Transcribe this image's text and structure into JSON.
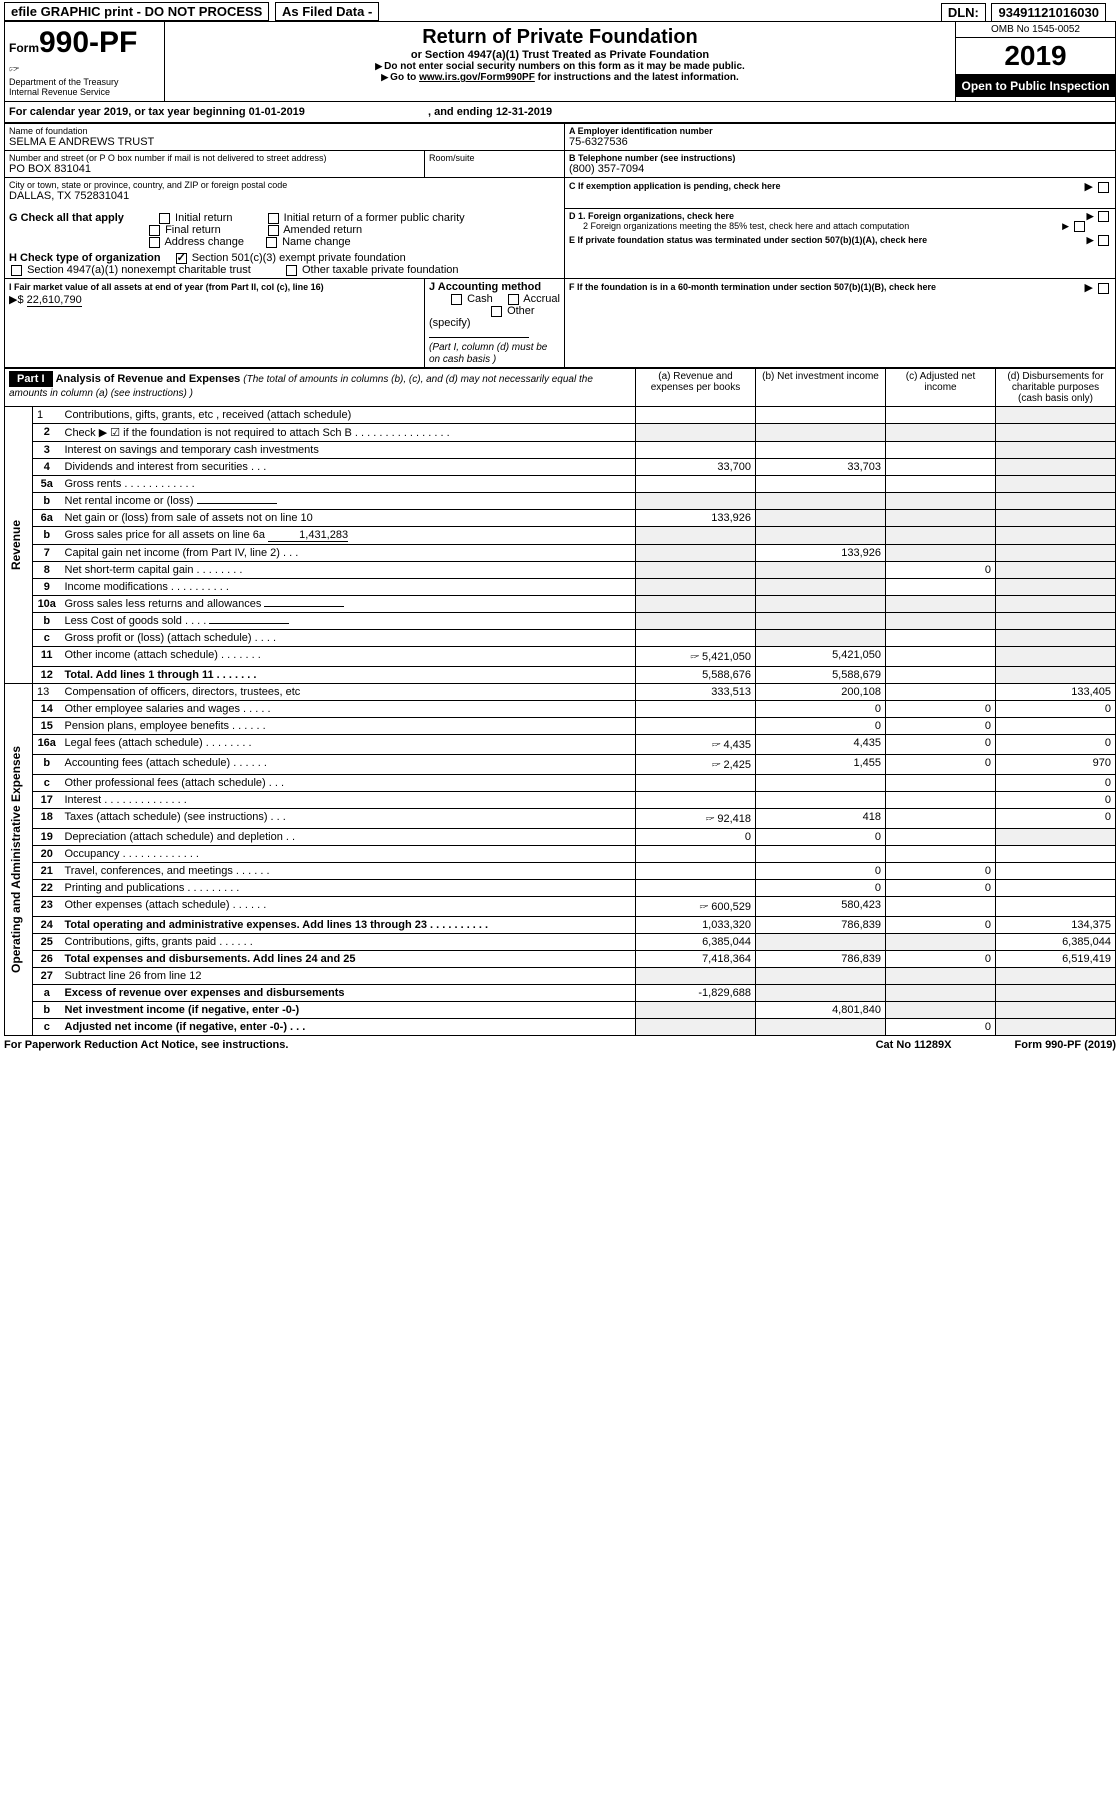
{
  "topbar": {
    "efile": "efile GRAPHIC print - DO NOT PROCESS",
    "asfiled": "As Filed Data -",
    "dln_label": "DLN:",
    "dln": "93491121016030"
  },
  "header": {
    "form_prefix": "Form",
    "form_no": "990-PF",
    "dept": "Department of the Treasury",
    "irs": "Internal Revenue Service",
    "title": "Return of Private Foundation",
    "subtitle": "or Section 4947(a)(1) Trust Treated as Private Foundation",
    "note1": "Do not enter social security numbers on this form as it may be made public.",
    "note2_pre": "Go to ",
    "note2_link": "www.irs.gov/Form990PF",
    "note2_post": " for instructions and the latest information.",
    "omb": "OMB No  1545-0052",
    "year": "2019",
    "inspect": "Open to Public Inspection"
  },
  "cal": {
    "line": "For calendar year 2019, or tax year beginning 01-01-2019",
    "ending": ", and ending 12-31-2019"
  },
  "id": {
    "name_label": "Name of foundation",
    "name": "SELMA E ANDREWS TRUST",
    "addr_label": "Number and street (or P O  box number if mail is not delivered to street address)",
    "room_label": "Room/suite",
    "addr": "PO BOX 831041",
    "city_label": "City or town, state or province, country, and ZIP or foreign postal code",
    "city": "DALLAS, TX  752831041",
    "A_label": "A Employer identification number",
    "A": "75-6327536",
    "B_label": "B Telephone number (see instructions)",
    "B": "(800) 357-7094",
    "C": "C  If exemption application is pending, check here",
    "D1": "D 1. Foreign organizations, check here",
    "D2": "2  Foreign organizations meeting the 85% test, check here and attach computation",
    "E": "E  If private foundation status was terminated under section 507(b)(1)(A), check here",
    "F": "F  If the foundation is in a 60-month termination under section 507(b)(1)(B), check here"
  },
  "G": {
    "label": "G Check all that apply",
    "opts": [
      "Initial return",
      "Initial return of a former public charity",
      "Final return",
      "Amended return",
      "Address change",
      "Name change"
    ]
  },
  "H": {
    "label": "H Check type of organization",
    "opt1": "Section 501(c)(3) exempt private foundation",
    "opt2": "Section 4947(a)(1) nonexempt charitable trust",
    "opt3": "Other taxable private foundation"
  },
  "I": {
    "label": "I Fair market value of all assets at end of year (from Part II, col  (c), line 16)",
    "value_prefix": "▶$",
    "value": "22,610,790"
  },
  "J": {
    "label": "J Accounting method",
    "opts": [
      "Cash",
      "Accrual",
      "Other (specify)"
    ],
    "note": "(Part I, column (d) must be on cash basis )"
  },
  "part1": {
    "label": "Part I",
    "title": "Analysis of Revenue and Expenses",
    "title_note": " (The total of amounts in columns (b), (c), and (d) may not necessarily equal the amounts in column (a) (see instructions) )",
    "cols": {
      "a": "(a)   Revenue and expenses per books",
      "b": "(b)   Net investment income",
      "c": "(c)   Adjusted net income",
      "d": "(d)   Disbursements for charitable purposes (cash basis only)"
    }
  },
  "sidelabels": {
    "rev": "Revenue",
    "exp": "Operating and Administrative Expenses"
  },
  "rows": [
    {
      "n": "1",
      "t": "Contributions, gifts, grants, etc , received (attach schedule)",
      "a": "",
      "b": "",
      "c": "",
      "d": "",
      "dshade": true
    },
    {
      "n": "2",
      "t": "Check  ▶ ☑ if the foundation is not required to attach Sch  B      .   .   .   .   .   .   .   .   .   .   .   .   .   .   .   .",
      "a": "",
      "b": "",
      "c": "",
      "d": "",
      "allshade": true,
      "html": true
    },
    {
      "n": "3",
      "t": "Interest on savings and temporary cash investments",
      "a": "",
      "b": "",
      "c": "",
      "d": "",
      "dshade": true
    },
    {
      "n": "4",
      "t": "Dividends and interest from securities     .   .   .",
      "a": "33,700",
      "b": "33,703",
      "c": "",
      "d": "",
      "dshade": true
    },
    {
      "n": "5a",
      "t": "Gross rents      .   .   .   .   .   .   .   .   .   .   .   .",
      "a": "",
      "b": "",
      "c": "",
      "d": "",
      "dshade": true
    },
    {
      "n": "b",
      "t": "Net rental income or (loss)",
      "a": "",
      "b": "",
      "c": "",
      "d": "",
      "inline": true,
      "allshade": true
    },
    {
      "n": "6a",
      "t": "Net gain or (loss) from sale of assets not on line 10",
      "a": "133,926",
      "b": "",
      "c": "",
      "d": "",
      "bshade": true,
      "cshade": true,
      "dshade": true
    },
    {
      "n": "b",
      "t": "Gross sales price for all assets on line 6a",
      "a": "",
      "b": "",
      "c": "",
      "d": "",
      "inline": true,
      "inlineval": "1,431,283",
      "allshade": true
    },
    {
      "n": "7",
      "t": "Capital gain net income (from Part IV, line 2)    .   .   .",
      "a": "",
      "b": "133,926",
      "c": "",
      "d": "",
      "ashade": true,
      "cshade": true,
      "dshade": true
    },
    {
      "n": "8",
      "t": "Net short-term capital gain   .   .   .   .   .   .   .   .",
      "a": "",
      "b": "",
      "c": "0",
      "d": "",
      "ashade": true,
      "bshade": true,
      "dshade": true
    },
    {
      "n": "9",
      "t": "Income modifications  .   .   .   .   .   .   .   .   .   .",
      "a": "",
      "b": "",
      "c": "",
      "d": "",
      "ashade": true,
      "bshade": true,
      "dshade": true
    },
    {
      "n": "10a",
      "t": "Gross sales less returns and allowances",
      "a": "",
      "b": "",
      "c": "",
      "d": "",
      "inline": true,
      "allshade": true
    },
    {
      "n": "b",
      "t": "Less  Cost of goods sold     .   .   .   .",
      "a": "",
      "b": "",
      "c": "",
      "d": "",
      "inline": true,
      "allshade": true
    },
    {
      "n": "c",
      "t": "Gross profit or (loss) (attach schedule)     .   .   .   .",
      "a": "",
      "b": "",
      "c": "",
      "d": "",
      "bshade": true,
      "dshade": true
    },
    {
      "n": "11",
      "t": "Other income (attach schedule)    .   .   .   .   .   .   .",
      "a": "5,421,050",
      "b": "5,421,050",
      "c": "",
      "d": "",
      "icon": true,
      "dshade": true
    },
    {
      "n": "12",
      "t": "Total. Add lines 1 through 11    .   .   .   .   .   .   .",
      "a": "5,588,676",
      "b": "5,588,679",
      "c": "",
      "d": "",
      "bold": true,
      "dshade": true
    },
    {
      "n": "13",
      "t": "Compensation of officers, directors, trustees, etc",
      "a": "333,513",
      "b": "200,108",
      "c": "",
      "d": "133,405",
      "section": "exp"
    },
    {
      "n": "14",
      "t": "Other employee salaries and wages     .   .   .   .   .",
      "a": "",
      "b": "0",
      "c": "0",
      "d": "0"
    },
    {
      "n": "15",
      "t": "Pension plans, employee benefits    .   .   .   .   .   .",
      "a": "",
      "b": "0",
      "c": "0",
      "d": ""
    },
    {
      "n": "16a",
      "t": "Legal fees (attach schedule) .   .   .   .   .   .   .   .",
      "a": "4,435",
      "b": "4,435",
      "c": "0",
      "d": "0",
      "icon": true
    },
    {
      "n": "b",
      "t": "Accounting fees (attach schedule) .   .   .   .   .   .",
      "a": "2,425",
      "b": "1,455",
      "c": "0",
      "d": "970",
      "icon": true
    },
    {
      "n": "c",
      "t": "Other professional fees (attach schedule)    .   .   .",
      "a": "",
      "b": "",
      "c": "",
      "d": "0"
    },
    {
      "n": "17",
      "t": "Interest  .   .   .   .   .   .   .   .   .   .   .   .   .   .",
      "a": "",
      "b": "",
      "c": "",
      "d": "0"
    },
    {
      "n": "18",
      "t": "Taxes (attach schedule) (see instructions)     .   .   .",
      "a": "92,418",
      "b": "418",
      "c": "",
      "d": "0",
      "icon": true
    },
    {
      "n": "19",
      "t": "Depreciation (attach schedule) and depletion    .   .",
      "a": "0",
      "b": "0",
      "c": "",
      "d": "",
      "dshade": true
    },
    {
      "n": "20",
      "t": "Occupancy    .   .   .   .   .   .   .   .   .   .   .   .   .",
      "a": "",
      "b": "",
      "c": "",
      "d": ""
    },
    {
      "n": "21",
      "t": "Travel, conferences, and meetings .   .   .   .   .   .",
      "a": "",
      "b": "0",
      "c": "0",
      "d": ""
    },
    {
      "n": "22",
      "t": "Printing and publications .   .   .   .   .   .   .   .   .",
      "a": "",
      "b": "0",
      "c": "0",
      "d": ""
    },
    {
      "n": "23",
      "t": "Other expenses (attach schedule)  .   .   .   .   .   .",
      "a": "600,529",
      "b": "580,423",
      "c": "",
      "d": "",
      "icon": true
    },
    {
      "n": "24",
      "t": "Total operating and administrative expenses. Add lines 13 through 23   .   .   .   .   .   .   .   .   .   .",
      "a": "1,033,320",
      "b": "786,839",
      "c": "0",
      "d": "134,375",
      "bold": true
    },
    {
      "n": "25",
      "t": "Contributions, gifts, grants paid     .   .   .   .   .   .",
      "a": "6,385,044",
      "b": "",
      "c": "",
      "d": "6,385,044",
      "bshade": true,
      "cshade": true
    },
    {
      "n": "26",
      "t": "Total expenses and disbursements. Add lines 24 and 25",
      "a": "7,418,364",
      "b": "786,839",
      "c": "0",
      "d": "6,519,419",
      "bold": true
    },
    {
      "n": "27",
      "t": "Subtract line 26 from line 12",
      "a": "",
      "b": "",
      "c": "",
      "d": "",
      "allshade": true
    },
    {
      "n": "a",
      "t": "Excess of revenue over expenses and disbursements",
      "a": "-1,829,688",
      "b": "",
      "c": "",
      "d": "",
      "bold": true,
      "bshade": true,
      "cshade": true,
      "dshade": true
    },
    {
      "n": "b",
      "t": "Net investment income (if negative, enter -0-)",
      "a": "",
      "b": "4,801,840",
      "c": "",
      "d": "",
      "bold": true,
      "ashade": true,
      "cshade": true,
      "dshade": true
    },
    {
      "n": "c",
      "t": "Adjusted net income (if negative, enter -0-)  .   .   .",
      "a": "",
      "b": "",
      "c": "0",
      "d": "",
      "bold": true,
      "ashade": true,
      "bshade": true,
      "dshade": true
    }
  ],
  "footer": {
    "left": "For Paperwork Reduction Act Notice, see instructions.",
    "mid": "Cat  No  11289X",
    "right": "Form 990-PF (2019)"
  }
}
